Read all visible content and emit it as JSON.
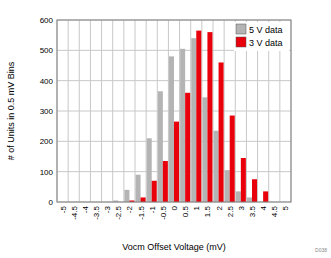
{
  "chart_data": {
    "type": "bar",
    "x_label": "Vocm Offset Voltage (mV)",
    "y_label": "# of Units in 0.5 mV Bins",
    "annotations": [
      "D038"
    ],
    "categories": [
      "-5",
      "-4.5",
      "-4",
      "-3.5",
      "-3",
      "-2.5",
      "-2",
      "-1.5",
      "-1",
      "-0.5",
      "0",
      "0.5",
      "1",
      "1.5",
      "2",
      "2.5",
      "3",
      "3.5",
      "4",
      "4.5",
      "5"
    ],
    "series": [
      {
        "name": "5 V data",
        "color": "#b4b4b4",
        "values": [
          0,
          0,
          0,
          0,
          0,
          5,
          40,
          90,
          210,
          365,
          480,
          505,
          540,
          345,
          235,
          105,
          35,
          15,
          0,
          0,
          0
        ]
      },
      {
        "name": "3 V data",
        "color": "#e8000b",
        "values": [
          0,
          0,
          0,
          0,
          0,
          0,
          5,
          15,
          70,
          135,
          265,
          360,
          565,
          560,
          460,
          285,
          145,
          75,
          35,
          0,
          0
        ]
      }
    ],
    "ylim": [
      0,
      600
    ],
    "yticks": [
      0,
      100,
      200,
      300,
      400,
      500,
      600
    ],
    "grid": true,
    "legend": "upper right"
  }
}
